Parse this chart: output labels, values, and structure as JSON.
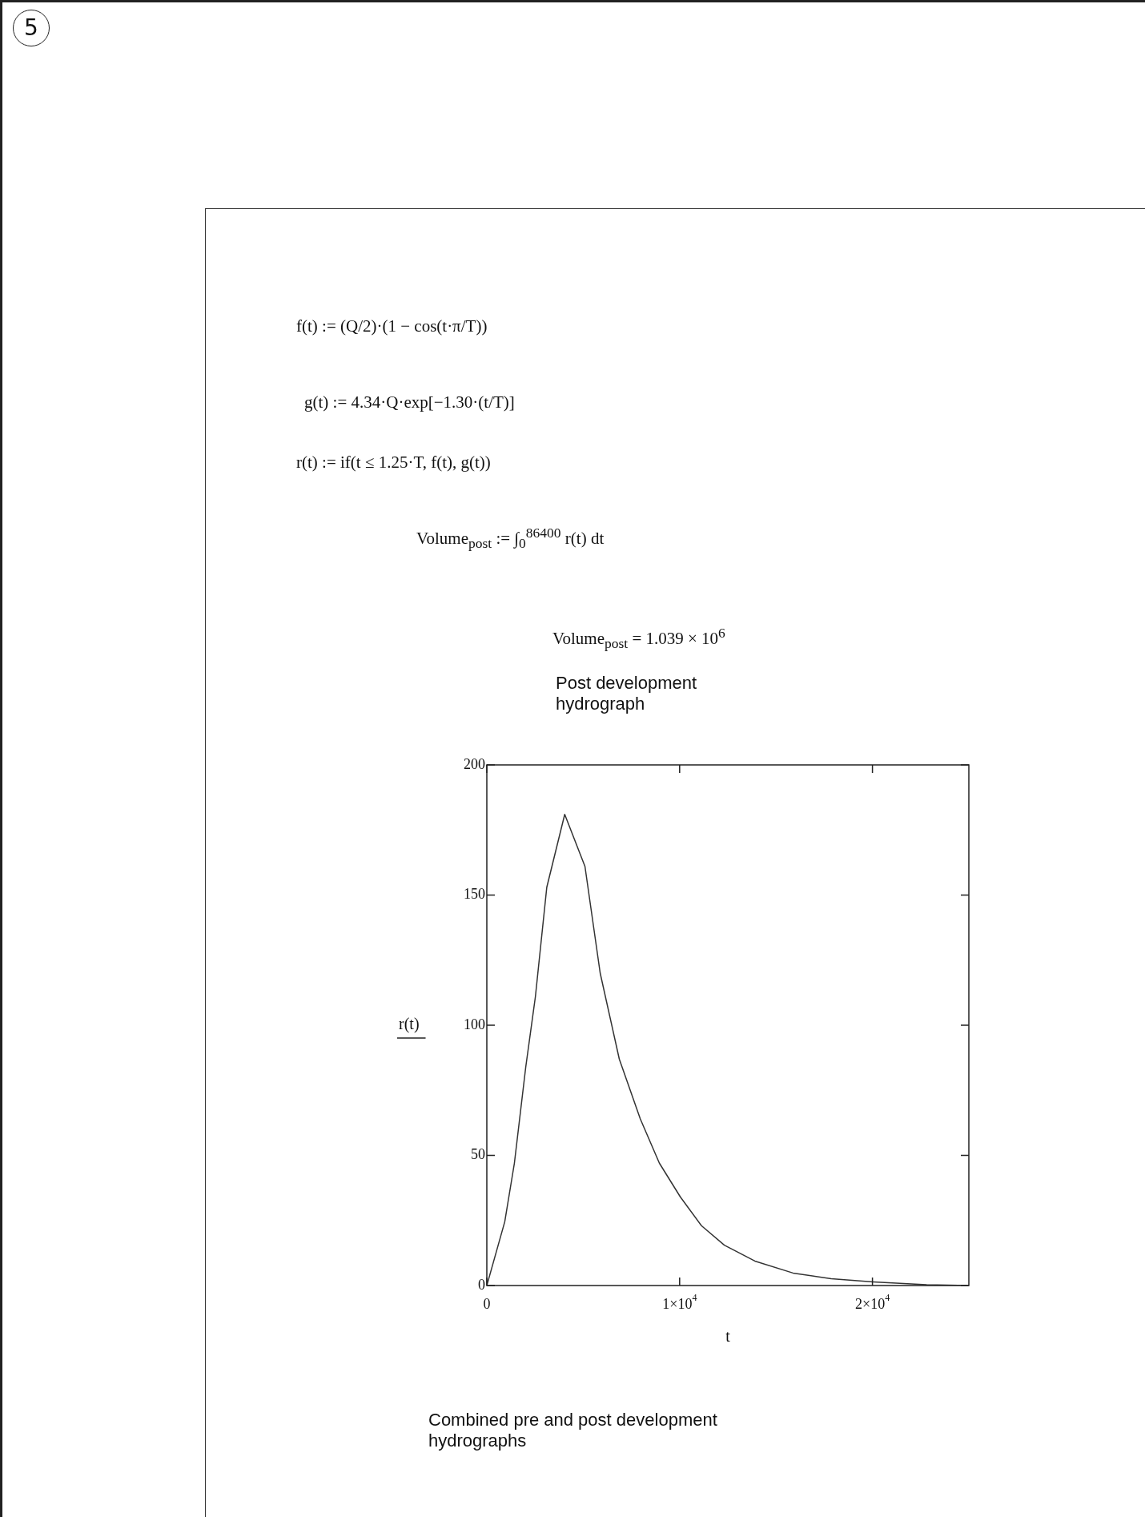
{
  "chart_data": {
    "type": "line",
    "title": "Post development hydrograph",
    "xlabel": "t",
    "ylabel": "r(t)",
    "x": [
      0,
      930,
      1430,
      2020,
      2520,
      3110,
      4040,
      5090,
      5880,
      6870,
      7960,
      8950,
      10040,
      11130,
      12320,
      13900,
      15880,
      17860,
      20040,
      22810,
      25000
    ],
    "series": [
      {
        "color": "#333333",
        "values": [
          0,
          24.5,
          47,
          84,
          111,
          153,
          181,
          161,
          120,
          87,
          64,
          47,
          34,
          23,
          15.5,
          9.4,
          4.8,
          2.6,
          1.4,
          0.3,
          0
        ]
      }
    ],
    "xlim": [
      0,
      25000
    ],
    "xticks": [
      0,
      {
        "value": 10000,
        "label": "1×10$^{4}$"
      },
      {
        "value": 20000,
        "label": "2×10$^{4}$"
      }
    ],
    "ylim": [
      0,
      200
    ],
    "yticks": [
      0,
      50,
      100,
      150,
      200
    ],
    "grid": false,
    "legend": false,
    "marker": "none",
    "line_style": "solid",
    "annotations": [
      "5",
      "f(t) := (Q/2)·(1 − cos(t·π/T))",
      "g(t) := 4.34·Q·exp[−1.30·(t/T)]",
      "r(t) := if(t ≤ 1.25·T, f(t), g(t))",
      "Volume$_{post}$ := ∫$_{0}$$^{86400}$ r(t) dt",
      "Volume$_{post}$ = 1.039 × 10$^{6}$",
      "Combined pre and post development hydrographs"
    ]
  }
}
